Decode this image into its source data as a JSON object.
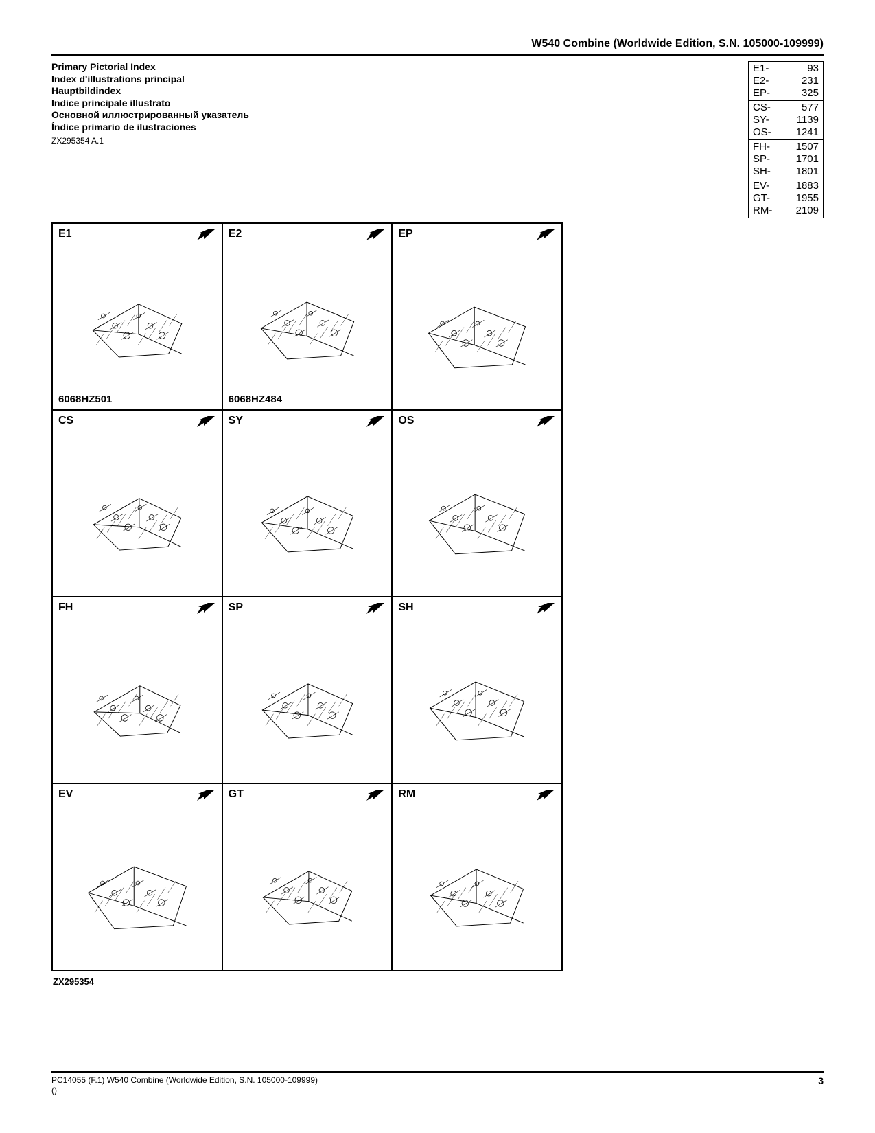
{
  "header": {
    "title": "W540 Combine (Worldwide Edition, S.N. 105000-109999)"
  },
  "titles": [
    "Primary Pictorial Index",
    "Index d'illustrations principal",
    "Hauptbildindex",
    "Indice principale illustrato",
    "Основной иллюстрированный указатель",
    "Índice primario de ilustraciones"
  ],
  "ref_top": "ZX295354 A.1",
  "index_groups": [
    [
      {
        "code": "E1-",
        "page": "93"
      },
      {
        "code": "E2-",
        "page": "231"
      },
      {
        "code": "EP-",
        "page": "325"
      }
    ],
    [
      {
        "code": "CS-",
        "page": "577"
      },
      {
        "code": "SY-",
        "page": "1139"
      },
      {
        "code": "OS-",
        "page": "1241"
      }
    ],
    [
      {
        "code": "FH-",
        "page": "1507"
      },
      {
        "code": "SP-",
        "page": "1701"
      },
      {
        "code": "SH-",
        "page": "1801"
      }
    ],
    [
      {
        "code": "EV-",
        "page": "1883"
      },
      {
        "code": "GT-",
        "page": "1955"
      },
      {
        "code": "RM-",
        "page": "2109"
      }
    ]
  ],
  "grid": [
    [
      {
        "code": "E1",
        "caption": "6068HZ501"
      },
      {
        "code": "E2",
        "caption": "6068HZ484"
      },
      {
        "code": "EP",
        "caption": ""
      }
    ],
    [
      {
        "code": "CS",
        "caption": ""
      },
      {
        "code": "SY",
        "caption": ""
      },
      {
        "code": "OS",
        "caption": ""
      }
    ],
    [
      {
        "code": "FH",
        "caption": ""
      },
      {
        "code": "SP",
        "caption": ""
      },
      {
        "code": "SH",
        "caption": ""
      }
    ],
    [
      {
        "code": "EV",
        "caption": ""
      },
      {
        "code": "GT",
        "caption": ""
      },
      {
        "code": "RM",
        "caption": ""
      }
    ]
  ],
  "bottom_ref": "ZX295354",
  "footer": {
    "left_text": "PC14055   (F.1)    W540 Combine (Worldwide Edition, S.N. 105000-109999)",
    "sub": "()",
    "page_num": "3"
  },
  "style": {
    "arrow_color": "#000000",
    "border_color": "#000000",
    "bg": "#ffffff"
  }
}
